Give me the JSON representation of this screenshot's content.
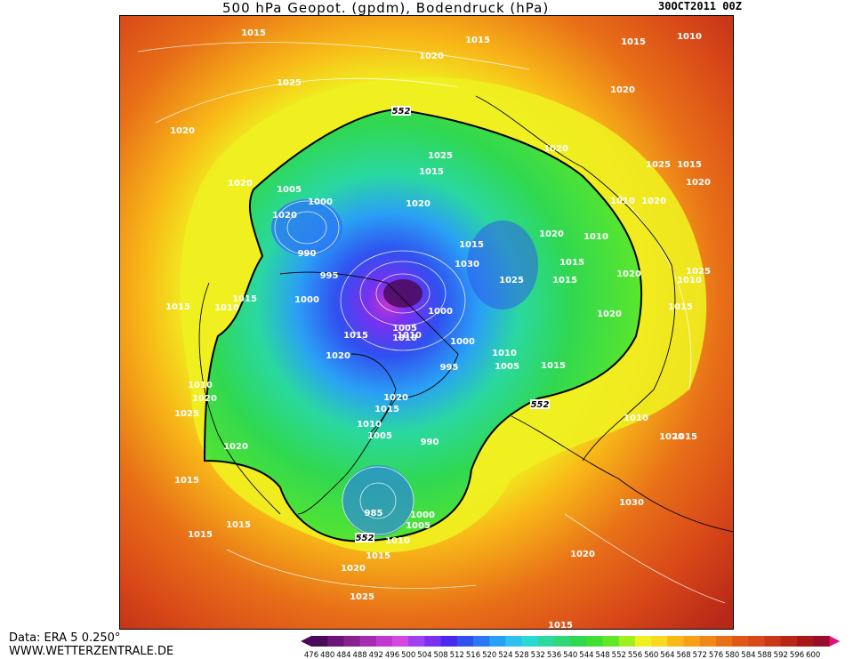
{
  "header": {
    "title": "500 hPa Geopot. (gpdm), Bodendruck (hPa)",
    "datetime": "30OCT2011 00Z"
  },
  "footer": {
    "data_source": "Data: ERA 5 0.250°",
    "website": "WWW.WETTERZENTRALE.DE"
  },
  "legend": {
    "values": [
      "476",
      "480",
      "484",
      "488",
      "492",
      "496",
      "500",
      "504",
      "508",
      "512",
      "516",
      "520",
      "524",
      "528",
      "532",
      "536",
      "540",
      "544",
      "548",
      "552",
      "556",
      "560",
      "564",
      "568",
      "572",
      "576",
      "580",
      "584",
      "588",
      "592",
      "596",
      "600"
    ],
    "colors": [
      "#4a0a5a",
      "#6a147a",
      "#88208f",
      "#a52bb0",
      "#c038cf",
      "#d248e0",
      "#a040f0",
      "#7a30f0",
      "#4a28f0",
      "#3050f0",
      "#2a78f5",
      "#2aa0f5",
      "#30c0f0",
      "#2ad8d8",
      "#2ad8a0",
      "#30d878",
      "#30d850",
      "#40e030",
      "#60e828",
      "#a0f020",
      "#f0f020",
      "#f8d820",
      "#f8b818",
      "#f8a018",
      "#f08818",
      "#e87018",
      "#e05818",
      "#d84818",
      "#c83818",
      "#b82818",
      "#a81818",
      "#981028"
    ]
  },
  "map_labels": {
    "isobars": [
      {
        "text": "1015"
      },
      {
        "text": "1020"
      },
      {
        "text": "1015"
      },
      {
        "text": "1015"
      },
      {
        "text": "1010"
      },
      {
        "text": "1025"
      },
      {
        "text": "1020"
      },
      {
        "text": "1020"
      },
      {
        "text": "1020"
      },
      {
        "text": "1020"
      },
      {
        "text": "1005"
      },
      {
        "text": "1000"
      },
      {
        "text": "990"
      },
      {
        "text": "995"
      },
      {
        "text": "1000"
      },
      {
        "text": "1015"
      },
      {
        "text": "1010"
      },
      {
        "text": "1020"
      },
      {
        "text": "1025"
      },
      {
        "text": "1015"
      },
      {
        "text": "1020"
      },
      {
        "text": "1015"
      },
      {
        "text": "1020"
      },
      {
        "text": "1010"
      },
      {
        "text": "1015"
      },
      {
        "text": "1030"
      },
      {
        "text": "1025"
      },
      {
        "text": "1020"
      },
      {
        "text": "1015"
      },
      {
        "text": "1000"
      },
      {
        "text": "1005"
      },
      {
        "text": "1010"
      },
      {
        "text": "1000"
      },
      {
        "text": "995"
      },
      {
        "text": "1005"
      },
      {
        "text": "1010"
      },
      {
        "text": "1015"
      },
      {
        "text": "1020"
      },
      {
        "text": "1015"
      },
      {
        "text": "1010"
      },
      {
        "text": "1005"
      },
      {
        "text": "990"
      },
      {
        "text": "985"
      },
      {
        "text": "1000"
      },
      {
        "text": "1005"
      },
      {
        "text": "1010"
      },
      {
        "text": "1015"
      },
      {
        "text": "1020"
      },
      {
        "text": "1025"
      },
      {
        "text": "1020"
      },
      {
        "text": "1015"
      },
      {
        "text": "1010"
      },
      {
        "text": "1015"
      },
      {
        "text": "1010"
      },
      {
        "text": "1020"
      },
      {
        "text": "1025"
      },
      {
        "text": "1020"
      },
      {
        "text": "1015"
      },
      {
        "text": "1015"
      },
      {
        "text": "1015"
      },
      {
        "text": "1010"
      },
      {
        "text": "1020"
      },
      {
        "text": "1015"
      },
      {
        "text": "1010"
      },
      {
        "text": "1020"
      },
      {
        "text": "1025"
      },
      {
        "text": "1020"
      },
      {
        "text": "1015"
      },
      {
        "text": "1010"
      },
      {
        "text": "1015"
      },
      {
        "text": "1020"
      },
      {
        "text": "1025"
      },
      {
        "text": "1030"
      },
      {
        "text": "1020"
      },
      {
        "text": "1015"
      }
    ],
    "contour_552": [
      {
        "text": "552"
      },
      {
        "text": "552"
      },
      {
        "text": "552"
      }
    ]
  }
}
